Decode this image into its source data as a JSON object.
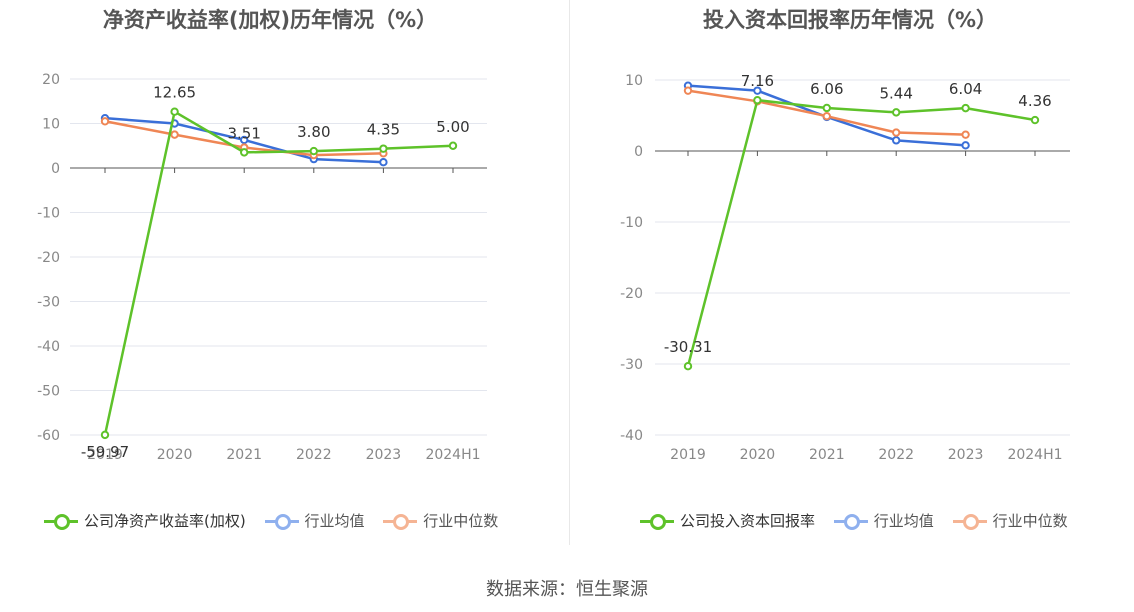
{
  "chart_data": [
    {
      "type": "line",
      "title": "净资产收益率(加权)历年情况（%）",
      "categories": [
        "2019",
        "2020",
        "2021",
        "2022",
        "2023",
        "2024H1"
      ],
      "ylim": [
        -60,
        20
      ],
      "yticks": [
        20,
        10,
        0,
        -10,
        -20,
        -30,
        -40,
        -50,
        -60
      ],
      "series": [
        {
          "name": "公司净资产收益率(加权)",
          "color": "#5ec22a",
          "values": [
            -59.97,
            12.65,
            3.51,
            3.8,
            4.35,
            5.0
          ],
          "labels": [
            "-59.97",
            "12.65",
            "3.51",
            "3.80",
            "4.35",
            "5.00"
          ]
        },
        {
          "name": "行业均值",
          "color": "#3a6fd8",
          "legend_color": "#8fb0ee",
          "values": [
            11.2,
            10.0,
            6.3,
            2.0,
            1.3,
            null
          ]
        },
        {
          "name": "行业中位数",
          "color": "#ef8655",
          "legend_color": "#f5b494",
          "values": [
            10.5,
            7.5,
            4.6,
            2.9,
            3.3,
            null
          ]
        }
      ]
    },
    {
      "type": "line",
      "title": "投入资本回报率历年情况（%）",
      "categories": [
        "2019",
        "2020",
        "2021",
        "2022",
        "2023",
        "2024H1"
      ],
      "ylim": [
        -40,
        10
      ],
      "yticks": [
        10,
        0,
        -10,
        -20,
        -30,
        -40
      ],
      "series": [
        {
          "name": "公司投入资本回报率",
          "color": "#5ec22a",
          "values": [
            -30.31,
            7.16,
            6.06,
            5.44,
            6.04,
            4.36
          ],
          "labels": [
            "-30.31",
            "7.16",
            "6.06",
            "5.44",
            "6.04",
            "4.36"
          ]
        },
        {
          "name": "行业均值",
          "color": "#3a6fd8",
          "legend_color": "#8fb0ee",
          "values": [
            9.2,
            8.5,
            4.8,
            1.5,
            0.8,
            null
          ]
        },
        {
          "name": "行业中位数",
          "color": "#ef8655",
          "legend_color": "#f5b494",
          "values": [
            8.5,
            7.0,
            4.9,
            2.6,
            2.3,
            null
          ]
        }
      ]
    }
  ],
  "source": "数据来源：恒生聚源"
}
